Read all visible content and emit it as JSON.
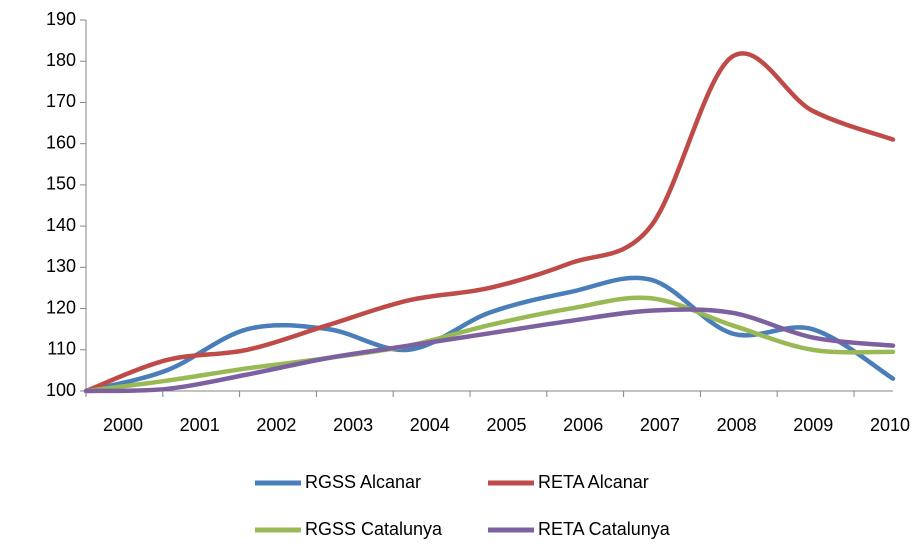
{
  "chart_data": {
    "type": "line",
    "categories": [
      "2000",
      "2001",
      "2002",
      "2003",
      "2004",
      "2005",
      "2006",
      "2007",
      "2008",
      "2009",
      "2010"
    ],
    "series": [
      {
        "name": "RGSS Alcanar",
        "color": "#4a7ebb",
        "values": [
          100,
          105,
          115,
          115,
          110,
          119,
          124,
          127,
          114,
          115,
          103
        ]
      },
      {
        "name": "RETA Alcanar",
        "color": "#be4b48",
        "values": [
          100,
          107.5,
          110,
          116,
          122,
          125,
          131,
          140,
          181,
          168,
          161
        ]
      },
      {
        "name": "RGSS Catalunya",
        "color": "#98b954",
        "values": [
          100,
          102.5,
          105.5,
          108,
          111,
          116,
          120,
          122.5,
          116,
          110,
          109.5
        ]
      },
      {
        "name": "RETA Catalunya",
        "color": "#7d60a0",
        "values": [
          100,
          100.5,
          104,
          108,
          111,
          114,
          117,
          119.5,
          119,
          113,
          111
        ]
      }
    ],
    "ylim": [
      100,
      190
    ],
    "yticks": [
      100,
      110,
      120,
      130,
      140,
      150,
      160,
      170,
      180,
      190
    ],
    "grid": false,
    "legend": "bottom"
  }
}
